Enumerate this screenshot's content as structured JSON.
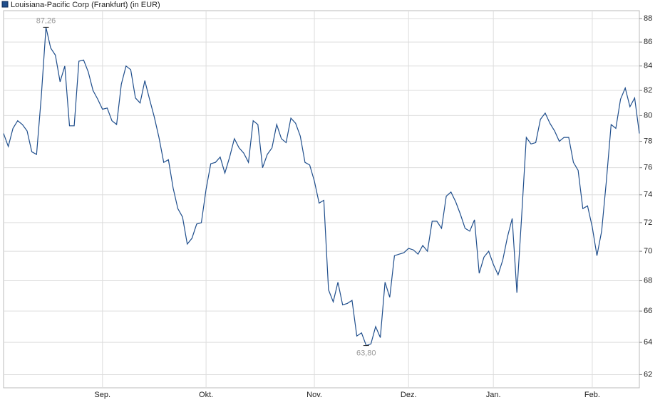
{
  "chart_data": {
    "type": "line",
    "series": [
      {
        "name": "Louisiana-Pacific Corp (Frankfurt) (in EUR)",
        "color": "#1f4e8c",
        "values": [
          78.6,
          77.6,
          79.0,
          79.6,
          79.3,
          78.8,
          77.2,
          77.0,
          81.5,
          87.26,
          85.5,
          84.9,
          82.7,
          84.0,
          79.2,
          79.2,
          84.4,
          84.5,
          83.5,
          82.0,
          81.3,
          80.5,
          80.6,
          79.6,
          79.3,
          82.5,
          84.0,
          83.7,
          81.4,
          81.0,
          82.8,
          81.3,
          79.9,
          78.3,
          76.4,
          76.6,
          74.5,
          73.0,
          72.4,
          70.5,
          70.9,
          71.9,
          72.0,
          74.4,
          76.3,
          76.4,
          76.8,
          75.6,
          76.8,
          78.2,
          77.5,
          77.1,
          76.4,
          79.6,
          79.3,
          76.0,
          77.0,
          77.5,
          79.3,
          78.2,
          77.9,
          79.8,
          79.4,
          78.4,
          76.4,
          76.2,
          75.0,
          73.4,
          73.6,
          67.4,
          66.6,
          67.9,
          66.4,
          66.5,
          66.7,
          64.4,
          64.6,
          63.8,
          63.9,
          65.0,
          64.3,
          67.9,
          66.9,
          69.7,
          69.8,
          69.9,
          70.2,
          70.1,
          69.8,
          70.4,
          70.0,
          72.1,
          72.1,
          71.6,
          73.9,
          74.2,
          73.5,
          72.6,
          71.6,
          71.4,
          72.2,
          68.5,
          69.6,
          70.0,
          69.1,
          68.4,
          69.4,
          71.0,
          72.3,
          67.2,
          72.4,
          78.3,
          77.8,
          77.9,
          79.7,
          80.2,
          79.4,
          78.8,
          78.0,
          78.3,
          78.3,
          76.4,
          75.8,
          73.0,
          73.2,
          71.7,
          69.7,
          71.4,
          75.0,
          79.3,
          79.0,
          81.3,
          82.2,
          80.7,
          81.4,
          78.6
        ]
      }
    ],
    "x": [
      0,
      1,
      2,
      3,
      4,
      5,
      6,
      7,
      8,
      9,
      10,
      11,
      12,
      13,
      14,
      15,
      16,
      17,
      18,
      19,
      20,
      21,
      22,
      23,
      24,
      25,
      26,
      27,
      28,
      29,
      30,
      31,
      32,
      33,
      34,
      35,
      36,
      37,
      38,
      39,
      40,
      41,
      42,
      43,
      44,
      45,
      46,
      47,
      48,
      49,
      50,
      51,
      52,
      53,
      54,
      55,
      56,
      57,
      58,
      59,
      60,
      61,
      62,
      63,
      64,
      65,
      66,
      67,
      68,
      69,
      70,
      71,
      72,
      73,
      74,
      75,
      76,
      77,
      78,
      79,
      80,
      81,
      82,
      83,
      84,
      85,
      86,
      87,
      88,
      89,
      90,
      91,
      92,
      93,
      94,
      95,
      96,
      97,
      98,
      99,
      100,
      101,
      102,
      103,
      104,
      105,
      106,
      107,
      108,
      109,
      110,
      111,
      112,
      113,
      114,
      115,
      116,
      117,
      118,
      119,
      120,
      121,
      122,
      123,
      124,
      125,
      126,
      127,
      128,
      129,
      130,
      131,
      132,
      133,
      134,
      135
    ],
    "xlim": [
      0,
      135
    ],
    "xticks": [
      {
        "value": 21,
        "label": "Sep."
      },
      {
        "value": 43,
        "label": "Okt."
      },
      {
        "value": 66,
        "label": "Nov."
      },
      {
        "value": 86,
        "label": "Dez."
      },
      {
        "value": 104,
        "label": "Jan."
      },
      {
        "value": 125,
        "label": "Feb."
      }
    ],
    "ylim": [
      61.2,
      88.7
    ],
    "yticks": [
      62,
      64,
      66,
      68,
      70,
      72,
      74,
      76,
      78,
      80,
      82,
      84,
      86,
      88
    ],
    "log_scale": true,
    "grid": true,
    "annotations": [
      {
        "x": 9,
        "y": 87.26,
        "label": "87,26"
      },
      {
        "x": 77,
        "y": 63.8,
        "label": "63,80"
      }
    ]
  }
}
